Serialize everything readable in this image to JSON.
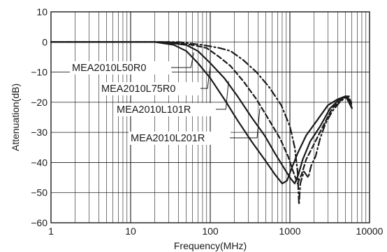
{
  "chart_data": {
    "type": "line",
    "xlabel": "Frequency(MHz)",
    "ylabel": "Attenuation(dB)",
    "x_scale": "log",
    "xlim": [
      1,
      10000
    ],
    "ylim": [
      -60,
      10
    ],
    "x_ticks": [
      1,
      10,
      100,
      1000,
      10000
    ],
    "x_tick_labels": [
      "1",
      "10",
      "100",
      "1000",
      "10000"
    ],
    "y_ticks": [
      10,
      0,
      -10,
      -20,
      -30,
      -40,
      -50,
      -60
    ],
    "y_tick_labels": [
      "10",
      "0",
      "−10",
      "−20",
      "−30",
      "−40",
      "−50",
      "−60"
    ],
    "grid": true,
    "series": [
      {
        "name": "MEA2010L50R0",
        "style": "solid",
        "points": [
          [
            1,
            0
          ],
          [
            20,
            0
          ],
          [
            35,
            -1
          ],
          [
            50,
            -3
          ],
          [
            70,
            -7
          ],
          [
            100,
            -12
          ],
          [
            150,
            -19
          ],
          [
            220,
            -26
          ],
          [
            330,
            -33
          ],
          [
            480,
            -39
          ],
          [
            650,
            -44
          ],
          [
            800,
            -47
          ],
          [
            920,
            -46
          ],
          [
            1050,
            -42
          ],
          [
            1250,
            -37
          ],
          [
            1600,
            -31
          ],
          [
            2200,
            -26
          ],
          [
            3000,
            -21
          ],
          [
            4000,
            -19
          ],
          [
            5000,
            -18
          ],
          [
            5500,
            -20
          ],
          [
            6000,
            -22
          ]
        ]
      },
      {
        "name": "MEA2010L75R0",
        "style": "solid",
        "points": [
          [
            1,
            0
          ],
          [
            25,
            0
          ],
          [
            50,
            -1
          ],
          [
            70,
            -3
          ],
          [
            100,
            -7
          ],
          [
            150,
            -12
          ],
          [
            220,
            -18
          ],
          [
            330,
            -25
          ],
          [
            480,
            -31
          ],
          [
            650,
            -37
          ],
          [
            850,
            -42
          ],
          [
            1000,
            -45
          ],
          [
            1150,
            -47
          ],
          [
            1280,
            -44
          ],
          [
            1450,
            -39
          ],
          [
            1800,
            -33
          ],
          [
            2400,
            -28
          ],
          [
            3200,
            -22
          ],
          [
            4200,
            -19
          ],
          [
            5200,
            -18
          ],
          [
            6000,
            -22
          ]
        ]
      },
      {
        "name": "MEA2010L101R",
        "style": "dashed",
        "points": [
          [
            1,
            0
          ],
          [
            30,
            0
          ],
          [
            60,
            -1
          ],
          [
            90,
            -2
          ],
          [
            130,
            -5
          ],
          [
            180,
            -8
          ],
          [
            260,
            -13
          ],
          [
            380,
            -19
          ],
          [
            550,
            -26
          ],
          [
            750,
            -32
          ],
          [
            950,
            -38
          ],
          [
            1100,
            -43
          ],
          [
            1250,
            -47
          ],
          [
            1400,
            -44
          ],
          [
            1600,
            -39
          ],
          [
            2000,
            -34
          ],
          [
            2600,
            -28
          ],
          [
            3400,
            -22
          ],
          [
            4500,
            -19
          ],
          [
            5500,
            -18
          ],
          [
            6000,
            -21
          ]
        ]
      },
      {
        "name": "MEA2010L201R",
        "style": "dash-dot",
        "points": [
          [
            1,
            0
          ],
          [
            40,
            0
          ],
          [
            80,
            -1
          ],
          [
            130,
            -2
          ],
          [
            180,
            -3
          ],
          [
            260,
            -6
          ],
          [
            380,
            -10
          ],
          [
            550,
            -15
          ],
          [
            780,
            -21
          ],
          [
            1000,
            -28
          ],
          [
            1150,
            -35
          ],
          [
            1250,
            -43
          ],
          [
            1300,
            -54
          ],
          [
            1350,
            -47
          ],
          [
            1500,
            -43
          ],
          [
            1700,
            -45
          ],
          [
            1850,
            -41
          ],
          [
            2100,
            -38
          ],
          [
            2400,
            -32
          ],
          [
            2800,
            -27
          ],
          [
            3400,
            -23
          ],
          [
            4200,
            -20
          ],
          [
            5200,
            -18
          ],
          [
            5800,
            -20
          ],
          [
            6000,
            -22
          ]
        ]
      }
    ],
    "annotations": [
      {
        "label": "MEA2010L50R0",
        "x": 62,
        "y": -3.5
      },
      {
        "label": "MEA2010L75R0",
        "x": 100,
        "y": -8
      },
      {
        "label": "MEA2010L101R",
        "x": 170,
        "y": -13
      },
      {
        "label": "MEA2010L201R",
        "x": 420,
        "y": -22
      }
    ],
    "colors": {
      "lines": "#1a1a1a",
      "grid": "#1a1a1a",
      "background": "#ffffff"
    }
  }
}
